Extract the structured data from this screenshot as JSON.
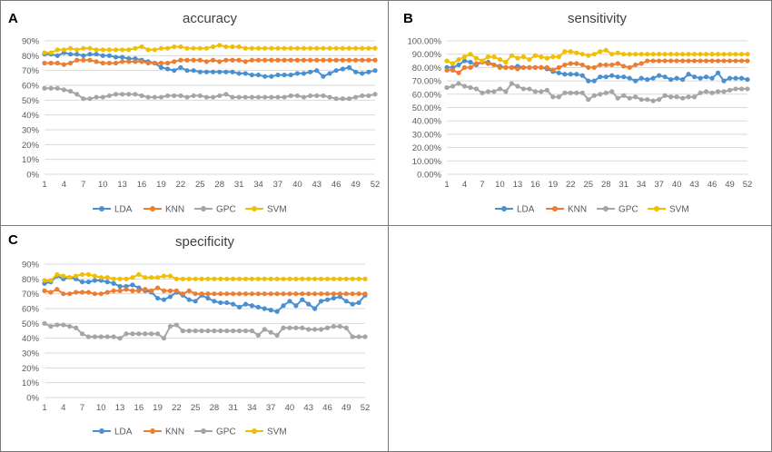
{
  "colors": {
    "LDA": "#4a90d0",
    "KNN": "#ed7d31",
    "GPC": "#a5a5a5",
    "SVM": "#f0bf00"
  },
  "x_ticks": [
    "1",
    "4",
    "7",
    "10",
    "13",
    "16",
    "19",
    "22",
    "25",
    "28",
    "31",
    "34",
    "37",
    "40",
    "43",
    "46",
    "49",
    "52"
  ],
  "chart_data": [
    {
      "panel": "A",
      "type": "line",
      "title": "accuracy",
      "ylim": [
        0,
        90
      ],
      "ytick_labels": [
        "0%",
        "10%",
        "20%",
        "30%",
        "40%",
        "50%",
        "60%",
        "70%",
        "80%",
        "90%"
      ],
      "x": [
        1,
        2,
        3,
        4,
        5,
        6,
        7,
        8,
        9,
        10,
        11,
        12,
        13,
        14,
        15,
        16,
        17,
        18,
        19,
        20,
        21,
        22,
        23,
        24,
        25,
        26,
        27,
        28,
        29,
        30,
        31,
        32,
        33,
        34,
        35,
        36,
        37,
        38,
        39,
        40,
        41,
        42,
        43,
        44,
        45,
        46,
        47,
        48,
        49,
        50,
        51,
        52
      ],
      "series": [
        {
          "name": "LDA",
          "values": [
            81,
            81,
            80,
            82,
            81,
            81,
            80,
            81,
            81,
            80,
            80,
            79,
            79,
            78,
            78,
            77,
            76,
            75,
            72,
            71,
            70,
            72,
            70,
            70,
            69,
            69,
            69,
            69,
            69,
            69,
            68,
            68,
            67,
            67,
            66,
            66,
            67,
            67,
            67,
            68,
            68,
            69,
            70,
            66,
            68,
            70,
            71,
            72,
            69,
            68,
            69,
            70
          ]
        },
        {
          "name": "KNN",
          "values": [
            75,
            75,
            75,
            74,
            75,
            77,
            77,
            77,
            76,
            75,
            75,
            75,
            76,
            76,
            76,
            76,
            75,
            75,
            75,
            75,
            76,
            77,
            77,
            77,
            77,
            76,
            77,
            76,
            77,
            77,
            77,
            76,
            77,
            77,
            77,
            77,
            77,
            77,
            77,
            77,
            77,
            77,
            77,
            77,
            77,
            77,
            77,
            77,
            77,
            77,
            77,
            77
          ]
        },
        {
          "name": "GPC",
          "values": [
            58,
            58,
            58,
            57,
            56,
            54,
            51,
            51,
            52,
            52,
            53,
            54,
            54,
            54,
            54,
            53,
            52,
            52,
            52,
            53,
            53,
            53,
            52,
            53,
            53,
            52,
            52,
            53,
            54,
            52,
            52,
            52,
            52,
            52,
            52,
            52,
            52,
            52,
            53,
            53,
            52,
            53,
            53,
            53,
            52,
            51,
            51,
            51,
            52,
            53,
            53,
            54
          ]
        },
        {
          "name": "SVM",
          "values": [
            82,
            82,
            84,
            84,
            85,
            84,
            85,
            85,
            84,
            84,
            84,
            84,
            84,
            84,
            85,
            86,
            84,
            84,
            85,
            85,
            86,
            86,
            85,
            85,
            85,
            85,
            86,
            87,
            86,
            86,
            86,
            85,
            85,
            85,
            85,
            85,
            85,
            85,
            85,
            85,
            85,
            85,
            85,
            85,
            85,
            85,
            85,
            85,
            85,
            85,
            85,
            85
          ]
        }
      ],
      "legend": [
        "LDA",
        "KNN",
        "GPC",
        "SVM"
      ]
    },
    {
      "panel": "B",
      "type": "line",
      "title": "sensitivity",
      "ylim": [
        0,
        100
      ],
      "ytick_labels": [
        "0.00%",
        "10.00%",
        "20.00%",
        "30.00%",
        "40.00%",
        "50.00%",
        "60.00%",
        "70.00%",
        "80.00%",
        "90.00%",
        "100.00%"
      ],
      "x": [
        1,
        2,
        3,
        4,
        5,
        6,
        7,
        8,
        9,
        10,
        11,
        12,
        13,
        14,
        15,
        16,
        17,
        18,
        19,
        20,
        21,
        22,
        23,
        24,
        25,
        26,
        27,
        28,
        29,
        30,
        31,
        32,
        33,
        34,
        35,
        36,
        37,
        38,
        39,
        40,
        41,
        42,
        43,
        44,
        45,
        46,
        47,
        48,
        49,
        50,
        51,
        52
      ],
      "series": [
        {
          "name": "LDA",
          "values": [
            80,
            80,
            82,
            85,
            84,
            82,
            84,
            84,
            82,
            81,
            80,
            80,
            81,
            80,
            80,
            80,
            80,
            79,
            77,
            76,
            75,
            75,
            75,
            74,
            70,
            70,
            73,
            73,
            74,
            73,
            73,
            72,
            70,
            72,
            71,
            72,
            74,
            73,
            71,
            72,
            71,
            75,
            73,
            72,
            73,
            72,
            76,
            70,
            72,
            72,
            72,
            71
          ]
        },
        {
          "name": "KNN",
          "values": [
            78,
            78,
            76,
            80,
            80,
            83,
            84,
            83,
            82,
            80,
            80,
            80,
            79,
            80,
            80,
            80,
            80,
            80,
            78,
            80,
            82,
            83,
            83,
            82,
            80,
            80,
            82,
            82,
            82,
            83,
            81,
            80,
            82,
            83,
            85,
            85,
            85,
            85,
            85,
            85,
            85,
            85,
            85,
            85,
            85,
            85,
            85,
            85,
            85,
            85,
            85,
            85
          ]
        },
        {
          "name": "GPC",
          "values": [
            65,
            66,
            68,
            66,
            65,
            64,
            61,
            62,
            62,
            64,
            62,
            68,
            66,
            64,
            64,
            62,
            62,
            63,
            58,
            58,
            61,
            61,
            61,
            61,
            56,
            59,
            60,
            61,
            62,
            57,
            59,
            57,
            58,
            56,
            56,
            55,
            56,
            59,
            58,
            58,
            57,
            58,
            58,
            61,
            62,
            61,
            62,
            62,
            63,
            64,
            64,
            64
          ]
        },
        {
          "name": "SVM",
          "values": [
            85,
            83,
            86,
            88,
            90,
            87,
            85,
            88,
            88,
            86,
            84,
            89,
            87,
            88,
            86,
            89,
            88,
            87,
            88,
            88,
            92,
            92,
            91,
            90,
            89,
            90,
            92,
            93,
            90,
            91,
            90,
            90,
            90,
            90,
            90,
            90,
            90,
            90,
            90,
            90,
            90,
            90,
            90,
            90,
            90,
            90,
            90,
            90,
            90,
            90,
            90,
            90
          ]
        }
      ],
      "legend": [
        "LDA",
        "KNN",
        "GPC",
        "SVM"
      ]
    },
    {
      "panel": "C",
      "type": "line",
      "title": "specificity",
      "ylim": [
        0,
        90
      ],
      "ytick_labels": [
        "0%",
        "10%",
        "20%",
        "30%",
        "40%",
        "50%",
        "60%",
        "70%",
        "80%",
        "90%"
      ],
      "x": [
        1,
        2,
        3,
        4,
        5,
        6,
        7,
        8,
        9,
        10,
        11,
        12,
        13,
        14,
        15,
        16,
        17,
        18,
        19,
        20,
        21,
        22,
        23,
        24,
        25,
        26,
        27,
        28,
        29,
        30,
        31,
        32,
        33,
        34,
        35,
        36,
        37,
        38,
        39,
        40,
        41,
        42,
        43,
        44,
        45,
        46,
        47,
        48,
        49,
        50,
        51,
        52
      ],
      "series": [
        {
          "name": "LDA",
          "values": [
            77,
            78,
            82,
            80,
            81,
            80,
            78,
            78,
            79,
            79,
            78,
            77,
            75,
            75,
            76,
            74,
            72,
            71,
            67,
            66,
            68,
            71,
            69,
            66,
            65,
            69,
            67,
            65,
            64,
            64,
            63,
            61,
            63,
            62,
            61,
            60,
            59,
            58,
            62,
            65,
            62,
            66,
            63,
            60,
            65,
            66,
            67,
            68,
            65,
            63,
            64,
            69
          ]
        },
        {
          "name": "KNN",
          "values": [
            72,
            71,
            73,
            70,
            70,
            71,
            71,
            71,
            70,
            70,
            71,
            72,
            72,
            73,
            72,
            72,
            73,
            72,
            74,
            72,
            72,
            72,
            70,
            72,
            70,
            70,
            70,
            70,
            70,
            70,
            70,
            70,
            70,
            70,
            70,
            70,
            70,
            70,
            70,
            70,
            70,
            70,
            70,
            70,
            70,
            70,
            70,
            70,
            70,
            70,
            70,
            70
          ]
        },
        {
          "name": "GPC",
          "values": [
            50,
            48,
            49,
            49,
            48,
            47,
            43,
            41,
            41,
            41,
            41,
            41,
            40,
            43,
            43,
            43,
            43,
            43,
            43,
            40,
            48,
            49,
            45,
            45,
            45,
            45,
            45,
            45,
            45,
            45,
            45,
            45,
            45,
            45,
            42,
            46,
            44,
            42,
            47,
            47,
            47,
            47,
            46,
            46,
            46,
            47,
            48,
            48,
            47,
            41,
            41,
            41
          ]
        },
        {
          "name": "SVM",
          "values": [
            79,
            79,
            83,
            82,
            81,
            82,
            83,
            83,
            82,
            81,
            81,
            80,
            80,
            80,
            81,
            83,
            81,
            81,
            81,
            82,
            82,
            80,
            80,
            80,
            80,
            80,
            80,
            80,
            80,
            80,
            80,
            80,
            80,
            80,
            80,
            80,
            80,
            80,
            80,
            80,
            80,
            80,
            80,
            80,
            80,
            80,
            80,
            80,
            80,
            80,
            80,
            80
          ]
        }
      ],
      "legend": [
        "LDA",
        "KNN",
        "GPC",
        "SVM"
      ]
    }
  ]
}
